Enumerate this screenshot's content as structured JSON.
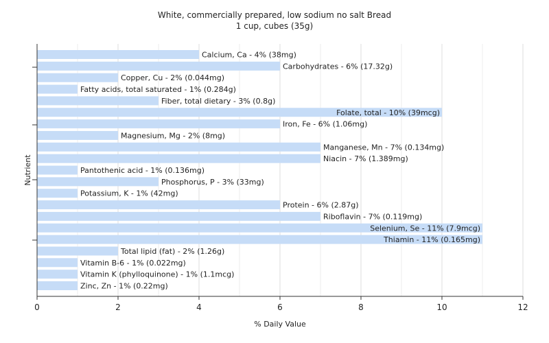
{
  "chart_data": {
    "type": "bar",
    "orientation": "horizontal",
    "title": "White, commercially prepared, low sodium no salt Bread",
    "subtitle": "1 cup, cubes (35g)",
    "xlabel": "% Daily Value",
    "ylabel": "Nutrient",
    "xlim": [
      0,
      12
    ],
    "xticks": [
      "0",
      "2",
      "4",
      "6",
      "8",
      "10",
      "12"
    ],
    "grid": true,
    "bar_color": "#c6dcf7",
    "categories": [
      "Calcium, Ca",
      "Carbohydrates",
      "Copper, Cu",
      "Fatty acids, total saturated",
      "Fiber, total dietary",
      "Folate, total",
      "Iron, Fe",
      "Magnesium, Mg",
      "Manganese, Mn",
      "Niacin",
      "Pantothenic acid",
      "Phosphorus, P",
      "Potassium, K",
      "Protein",
      "Riboflavin",
      "Selenium, Se",
      "Thiamin",
      "Total lipid (fat)",
      "Vitamin B-6",
      "Vitamin K (phylloquinone)",
      "Zinc, Zn"
    ],
    "values": [
      4,
      6,
      2,
      1,
      3,
      10,
      6,
      2,
      7,
      7,
      1,
      3,
      1,
      6,
      7,
      11,
      11,
      2,
      1,
      1,
      1
    ],
    "labels": [
      "Calcium, Ca - 4% (38mg)",
      "Carbohydrates - 6% (17.32g)",
      "Copper, Cu - 2% (0.044mg)",
      "Fatty acids, total saturated - 1% (0.284g)",
      "Fiber, total dietary - 3% (0.8g)",
      "Folate, total - 10% (39mcg)",
      "Iron, Fe - 6% (1.06mg)",
      "Magnesium, Mg - 2% (8mg)",
      "Manganese, Mn - 7% (0.134mg)",
      "Niacin - 7% (1.389mg)",
      "Pantothenic acid - 1% (0.136mg)",
      "Phosphorus, P - 3% (33mg)",
      "Potassium, K - 1% (42mg)",
      "Protein - 6% (2.87g)",
      "Riboflavin - 7% (0.119mg)",
      "Selenium, Se - 11% (7.9mcg)",
      "Thiamin - 11% (0.165mg)",
      "Total lipid (fat) - 2% (1.26g)",
      "Vitamin B-6 - 1% (0.022mg)",
      "Vitamin K (phylloquinone) - 1% (1.1mcg)",
      "Zinc, Zn - 1% (0.22mg)"
    ],
    "label_inside": [
      false,
      false,
      false,
      false,
      false,
      true,
      false,
      false,
      false,
      false,
      false,
      false,
      false,
      false,
      false,
      true,
      true,
      false,
      false,
      false,
      false
    ]
  }
}
